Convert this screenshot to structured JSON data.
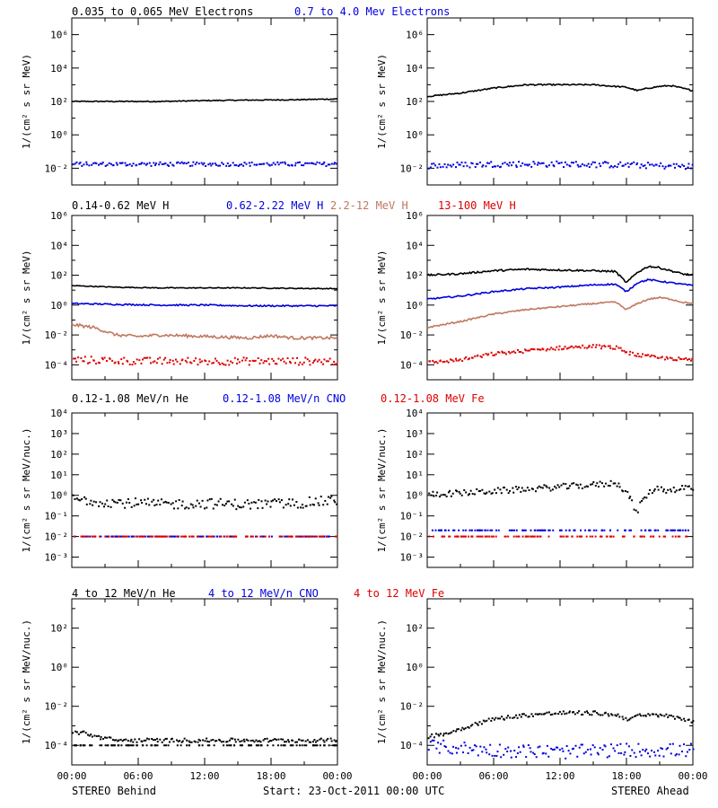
{
  "colors": {
    "black": "#000000",
    "blue": "#0000dd",
    "brown": "#c07860",
    "red": "#dd0000"
  },
  "footer": {
    "left": "STEREO Behind",
    "center": "Start: 23-Oct-2011 00:00 UTC",
    "right": "STEREO Ahead"
  },
  "x_ticks": [
    "00:00",
    "06:00",
    "12:00",
    "18:00",
    "00:00"
  ],
  "rows": [
    {
      "legend": [
        {
          "text": "0.035 to 0.065 MeV Electrons",
          "color": "#000000"
        },
        {
          "text": "0.7 to 4.0 Mev Electrons",
          "color": "#0000dd"
        }
      ],
      "ylabel": "1/(cm² s sr MeV)"
    },
    {
      "legend": [
        {
          "text": "0.14-0.62 MeV H",
          "color": "#000000"
        },
        {
          "text": "0.62-2.22 MeV H",
          "color": "#0000dd"
        },
        {
          "text": "2.2-12 MeV H",
          "color": "#c07860"
        },
        {
          "text": "13-100 MeV H",
          "color": "#dd0000"
        }
      ],
      "ylabel": "1/(cm² s sr MeV)"
    },
    {
      "legend": [
        {
          "text": "0.12-1.08 MeV/n He",
          "color": "#000000"
        },
        {
          "text": "0.12-1.08 MeV/n CNO",
          "color": "#0000dd"
        },
        {
          "text": "0.12-1.08 MeV Fe",
          "color": "#dd0000"
        }
      ],
      "ylabel": "1/(cm² s sr MeV/nuc.)"
    },
    {
      "legend": [
        {
          "text": "4 to 12 MeV/n He",
          "color": "#000000"
        },
        {
          "text": "4 to 12 MeV/n CNO",
          "color": "#0000dd"
        },
        {
          "text": "4 to 12 MeV Fe",
          "color": "#dd0000"
        }
      ],
      "ylabel": "1/(cm² s sr MeV/nuc.)"
    }
  ],
  "chart_data": [
    {
      "type": "scatter",
      "panel": "electrons-behind",
      "xlim": [
        0,
        24
      ],
      "ylog": true,
      "ylim_exp": [
        -3,
        7
      ],
      "yticks_exp": [
        -2,
        0,
        2,
        4,
        6
      ],
      "series": [
        {
          "color": "#000000",
          "style": "line",
          "x": [
            0,
            4,
            8,
            12,
            16,
            20,
            24
          ],
          "log_y": [
            2.0,
            2.0,
            2.0,
            2.05,
            2.08,
            2.1,
            2.15
          ],
          "scatter": 0.03
        },
        {
          "color": "#0000dd",
          "style": "dots",
          "x": [
            0,
            6,
            12,
            18,
            24
          ],
          "log_y": [
            -1.7,
            -1.7,
            -1.7,
            -1.7,
            -1.7
          ],
          "scatter": 0.12
        }
      ]
    },
    {
      "type": "scatter",
      "panel": "electrons-ahead",
      "xlim": [
        0,
        24
      ],
      "ylog": true,
      "ylim_exp": [
        -3,
        7
      ],
      "yticks_exp": [
        -2,
        0,
        2,
        4,
        6
      ],
      "series": [
        {
          "color": "#000000",
          "style": "line",
          "x": [
            0,
            3,
            6,
            9,
            12,
            15,
            18,
            19,
            20,
            21,
            22,
            23,
            24
          ],
          "log_y": [
            2.3,
            2.5,
            2.8,
            3.0,
            3.0,
            3.0,
            2.85,
            2.65,
            2.8,
            2.9,
            2.95,
            2.8,
            2.65
          ],
          "scatter": 0.04
        },
        {
          "color": "#0000dd",
          "style": "dots",
          "x": [
            0,
            6,
            12,
            18,
            24
          ],
          "log_y": [
            -1.8,
            -1.7,
            -1.7,
            -1.75,
            -1.85
          ],
          "scatter": 0.18
        }
      ]
    },
    {
      "type": "scatter",
      "panel": "protons-behind",
      "xlim": [
        0,
        24
      ],
      "ylog": true,
      "ylim_exp": [
        -5,
        6
      ],
      "yticks_exp": [
        -4,
        -2,
        0,
        2,
        4,
        6
      ],
      "series": [
        {
          "color": "#000000",
          "style": "line",
          "x": [
            0,
            4,
            8,
            12,
            16,
            20,
            24
          ],
          "log_y": [
            1.3,
            1.2,
            1.15,
            1.15,
            1.15,
            1.12,
            1.1
          ],
          "scatter": 0.03
        },
        {
          "color": "#0000dd",
          "style": "line",
          "x": [
            0,
            4,
            8,
            12,
            16,
            20,
            24
          ],
          "log_y": [
            0.1,
            0.05,
            0.0,
            0.0,
            -0.05,
            -0.05,
            -0.05
          ],
          "scatter": 0.05
        },
        {
          "color": "#c07860",
          "style": "line",
          "x": [
            0,
            1,
            2,
            4,
            6,
            8,
            12,
            16,
            18,
            20,
            24
          ],
          "log_y": [
            -1.3,
            -1.4,
            -1.5,
            -2.0,
            -2.1,
            -2.0,
            -2.1,
            -2.2,
            -2.05,
            -2.2,
            -2.2
          ],
          "scatter": 0.1
        },
        {
          "color": "#dd0000",
          "style": "dots",
          "x": [
            0,
            6,
            12,
            18,
            24
          ],
          "log_y": [
            -3.6,
            -3.7,
            -3.7,
            -3.7,
            -3.7
          ],
          "scatter": 0.25
        }
      ]
    },
    {
      "type": "scatter",
      "panel": "protons-ahead",
      "xlim": [
        0,
        24
      ],
      "ylog": true,
      "ylim_exp": [
        -5,
        6
      ],
      "yticks_exp": [
        -4,
        -2,
        0,
        2,
        4,
        6
      ],
      "series": [
        {
          "color": "#000000",
          "style": "line",
          "x": [
            0,
            3,
            6,
            9,
            12,
            15,
            17,
            18,
            19,
            20,
            21,
            22,
            23,
            24
          ],
          "log_y": [
            2.0,
            2.1,
            2.3,
            2.4,
            2.35,
            2.3,
            2.25,
            1.5,
            2.2,
            2.6,
            2.5,
            2.3,
            2.1,
            2.0
          ],
          "scatter": 0.06
        },
        {
          "color": "#0000dd",
          "style": "line",
          "x": [
            0,
            3,
            6,
            9,
            12,
            15,
            17,
            18,
            19,
            20,
            21,
            22,
            23,
            24
          ],
          "log_y": [
            0.4,
            0.6,
            0.9,
            1.1,
            1.2,
            1.35,
            1.4,
            0.9,
            1.5,
            1.7,
            1.6,
            1.5,
            1.4,
            1.3
          ],
          "scatter": 0.05
        },
        {
          "color": "#c07860",
          "style": "line",
          "x": [
            0,
            3,
            6,
            9,
            12,
            15,
            17,
            18,
            19,
            20,
            21,
            22,
            23,
            24
          ],
          "log_y": [
            -1.5,
            -1.1,
            -0.6,
            -0.3,
            -0.1,
            0.1,
            0.2,
            -0.3,
            0.1,
            0.4,
            0.5,
            0.4,
            0.2,
            0.1
          ],
          "scatter": 0.05
        },
        {
          "color": "#dd0000",
          "style": "dots",
          "x": [
            0,
            3,
            6,
            9,
            12,
            15,
            17,
            18,
            19,
            20,
            21,
            22,
            23,
            24
          ],
          "log_y": [
            -3.8,
            -3.6,
            -3.2,
            -3.0,
            -2.8,
            -2.7,
            -2.8,
            -3.1,
            -3.3,
            -3.4,
            -3.5,
            -3.5,
            -3.6,
            -3.6
          ],
          "scatter": 0.12
        }
      ]
    },
    {
      "type": "scatter",
      "panel": "heavy-low-behind",
      "xlim": [
        0,
        24
      ],
      "ylog": true,
      "ylim_exp": [
        -3.5,
        4
      ],
      "yticks_exp": [
        -3,
        -2,
        -1,
        0,
        1,
        2,
        3,
        4
      ],
      "series": [
        {
          "color": "#000000",
          "style": "dots",
          "x": [
            0,
            4,
            8,
            12,
            16,
            20,
            24
          ],
          "log_y": [
            -0.15,
            -0.3,
            -0.4,
            -0.35,
            -0.4,
            -0.35,
            -0.2
          ],
          "scatter": 0.25
        },
        {
          "color": "#0000dd",
          "style": "floor",
          "x": [
            0,
            24
          ],
          "log_y": [
            -2.0,
            -2.0
          ],
          "scatter": 0
        },
        {
          "color": "#dd0000",
          "style": "floor",
          "x": [
            0,
            24
          ],
          "log_y": [
            -2.0,
            -2.0
          ],
          "scatter": 0
        }
      ]
    },
    {
      "type": "scatter",
      "panel": "heavy-low-ahead",
      "xlim": [
        0,
        24
      ],
      "ylog": true,
      "ylim_exp": [
        -3.5,
        4
      ],
      "yticks_exp": [
        -3,
        -2,
        -1,
        0,
        1,
        2,
        3,
        4
      ],
      "series": [
        {
          "color": "#000000",
          "style": "dots",
          "x": [
            0,
            3,
            6,
            9,
            12,
            15,
            17,
            18,
            18.8,
            19.5,
            20.5,
            21.5,
            22.5,
            23.5,
            24
          ],
          "log_y": [
            0.1,
            0.15,
            0.25,
            0.35,
            0.45,
            0.55,
            0.65,
            0.2,
            -0.8,
            -0.1,
            0.4,
            0.3,
            0.35,
            0.45,
            0.25
          ],
          "scatter": 0.15
        },
        {
          "color": "#0000dd",
          "style": "floor",
          "x": [
            0,
            24
          ],
          "log_y": [
            -1.7,
            -1.7
          ],
          "scatter": 0
        },
        {
          "color": "#dd0000",
          "style": "floor",
          "x": [
            0,
            24
          ],
          "log_y": [
            -2.0,
            -2.0
          ],
          "scatter": 0
        }
      ]
    },
    {
      "type": "scatter",
      "panel": "heavy-high-behind",
      "xlim": [
        0,
        24
      ],
      "ylog": true,
      "ylim_exp": [
        -5,
        3.5
      ],
      "yticks_exp": [
        -4,
        -2,
        0,
        2
      ],
      "series": [
        {
          "color": "#000000",
          "style": "floor",
          "x": [
            0,
            24
          ],
          "log_y": [
            -4.0,
            -4.0
          ],
          "scatter": 0
        },
        {
          "color": "#000000",
          "style": "dots",
          "x": [
            0,
            1,
            2,
            4,
            8,
            12,
            16,
            20,
            24
          ],
          "log_y": [
            -3.3,
            -3.3,
            -3.5,
            -3.7,
            -3.7,
            -3.7,
            -3.7,
            -3.7,
            -3.7
          ],
          "scatter": 0.1
        }
      ]
    },
    {
      "type": "scatter",
      "panel": "heavy-high-ahead",
      "xlim": [
        0,
        24
      ],
      "ylog": true,
      "ylim_exp": [
        -5,
        3.5
      ],
      "yticks_exp": [
        -4,
        -2,
        0,
        2
      ],
      "series": [
        {
          "color": "#000000",
          "style": "dots",
          "x": [
            0,
            2,
            4,
            6,
            9,
            12,
            15,
            17,
            18,
            19,
            21,
            24
          ],
          "log_y": [
            -3.5,
            -3.3,
            -2.9,
            -2.6,
            -2.4,
            -2.3,
            -2.3,
            -2.4,
            -2.6,
            -2.45,
            -2.4,
            -2.7
          ],
          "scatter": 0.1
        },
        {
          "color": "#0000dd",
          "style": "dots",
          "x": [
            0,
            6,
            12,
            18,
            24
          ],
          "log_y": [
            -4.0,
            -4.2,
            -4.3,
            -4.2,
            -4.2
          ],
          "scatter": 0.35
        }
      ]
    }
  ]
}
